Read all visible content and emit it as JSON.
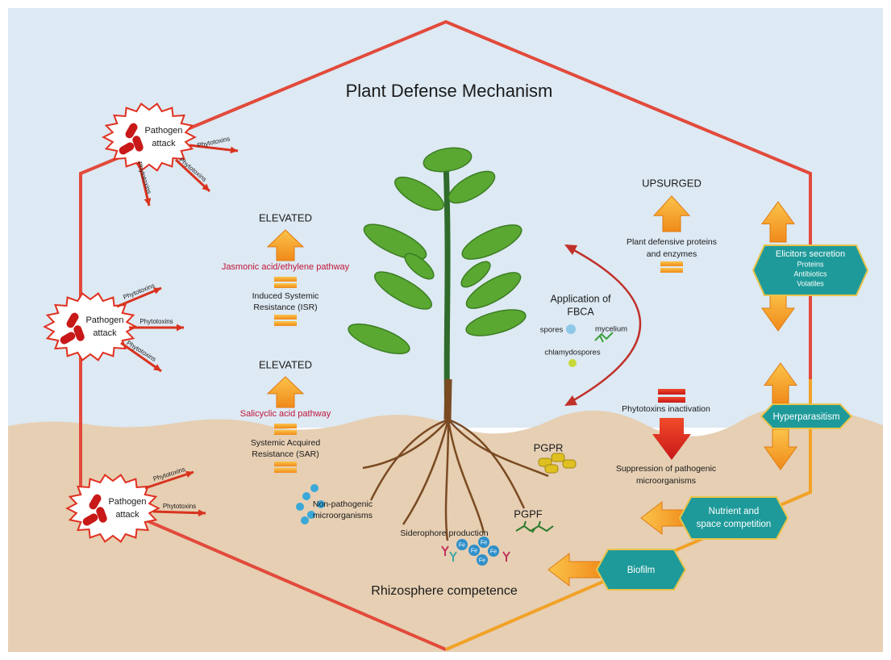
{
  "title": "Plant Defense Mechanism",
  "footer": "Rhizosphere competence",
  "pathogens": [
    {
      "label": [
        "Pathogen",
        "attack"
      ],
      "toxins": [
        "Phytotoxins",
        "Phytotoxins",
        "Phytotoxins"
      ]
    },
    {
      "label": [
        "Pathogen",
        "attack"
      ],
      "toxins": [
        "Phytotoxins",
        "Phytotoxins",
        "Phytotoxins"
      ]
    },
    {
      "label": [
        "Pathogen",
        "attack"
      ],
      "toxins": [
        "Phytotoxins",
        "Phytotoxins"
      ]
    }
  ],
  "left": {
    "isr": {
      "status": "ELEVATED",
      "pathway": "Jasmonic acid/ethylene pathway",
      "resistance": [
        "Induced Systemic",
        "Resistance (ISR)"
      ]
    },
    "sar": {
      "status": "ELEVATED",
      "pathway": "Salicyclic acid pathway",
      "resistance": [
        "Systemic  Acquired",
        "Resistance (SAR)"
      ]
    }
  },
  "right": {
    "status": "UPSURGED",
    "proteins": [
      "Plant defensive proteins",
      "and enzymes"
    ],
    "fbca": {
      "title": [
        "Application of",
        "FBCA"
      ],
      "spores": "spores",
      "mycelium": "mycelium",
      "chlamydospores": "chlamydospores"
    },
    "inactivation": "Phytotoxins inactivation",
    "suppression": [
      "Suppression of pathogenic",
      "microorganisms"
    ]
  },
  "mechanisms": {
    "elicitors": {
      "title": "Elicitors secretion",
      "items": [
        "Proteins",
        "Antibiotics",
        "Volatiles"
      ]
    },
    "hyperparasitism": "Hyperparasitism",
    "nutrient": [
      "Nutrient and",
      "space competition"
    ],
    "biofilm": "Biofilm"
  },
  "soil": {
    "pgpr": "PGPR",
    "pgpf": "PGPF",
    "nonpathogenic": [
      "Non-pathogenic",
      "microorganisms"
    ],
    "siderophore": "Siderophore production",
    "fe": [
      "Fe",
      "Fe",
      "Fe",
      "Fe",
      "Fe"
    ]
  }
}
